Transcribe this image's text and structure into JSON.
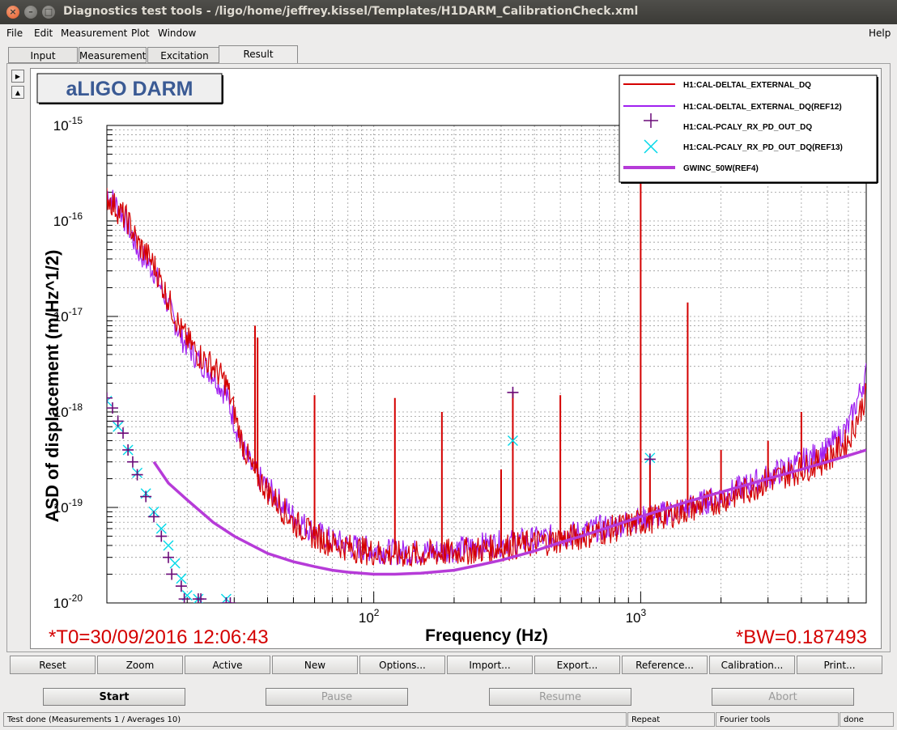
{
  "window": {
    "title": "Diagnostics test tools - /ligo/home/jeffrey.kissel/Templates/H1DARM_CalibrationCheck.xml"
  },
  "menu": {
    "items": [
      "File",
      "Edit",
      "Measurement",
      "Plot",
      "Window"
    ],
    "help": "Help"
  },
  "tabs": [
    "Input",
    "Measurement",
    "Excitation",
    "Result"
  ],
  "active_tab": "Result",
  "plot": {
    "title_box": "aLIGO DARM",
    "t0": "*T0=30/09/2016 12:06:43",
    "bw": "*BW=0.187493",
    "colors": {
      "ref12": "#a020f0",
      "gwinc": "#b63bd8",
      "meas": "#d40000",
      "pcaly": "#6a0a78",
      "pcaly_ref": "#00d8e8"
    }
  },
  "chart_data": {
    "type": "line",
    "xlabel": "Frequency (Hz)",
    "ylabel": "ASD of displacement (m/Hz^1/2)",
    "xscale": "log",
    "yscale": "log",
    "xlim": [
      10,
      7000
    ],
    "ylim": [
      1e-20,
      1e-15
    ],
    "grid": true,
    "legend_position": "top-right",
    "x_tick_labels": [
      "10^2",
      "10^3"
    ],
    "y_tick_labels": [
      "10^-15",
      "10^-16",
      "10^-17",
      "10^-18",
      "10^-19",
      "10^-20"
    ],
    "series": [
      {
        "name": "H1:CAL-DELTAL_EXTERNAL_DQ",
        "style": "line",
        "color": "#d40000",
        "x": [
          10,
          11,
          12,
          13,
          15,
          17,
          19,
          22,
          25,
          28,
          30,
          32,
          35,
          40,
          45,
          50,
          60,
          70,
          80,
          100,
          120,
          150,
          200,
          250,
          300,
          400,
          500,
          600,
          800,
          1000,
          1200,
          1500,
          2000,
          2500,
          3000,
          4000,
          5000,
          6000,
          7000
        ],
        "y": [
          1.8e-16,
          1.3e-16,
          1e-16,
          6e-17,
          3.5e-17,
          1.5e-17,
          7e-18,
          4e-18,
          3e-18,
          2e-18,
          1e-18,
          5e-19,
          2.5e-19,
          1.5e-19,
          1e-19,
          7e-20,
          5e-20,
          4.2e-20,
          3.8e-20,
          3.4e-20,
          3.2e-20,
          3.2e-20,
          3.4e-20,
          3.6e-20,
          3.8e-20,
          4.2e-20,
          4.6e-20,
          5e-20,
          6e-20,
          7e-20,
          8e-20,
          9.5e-20,
          1.2e-19,
          1.5e-19,
          1.9e-19,
          2.5e-19,
          3.2e-19,
          5e-19,
          1.5e-18
        ]
      },
      {
        "name": "H1:CAL-DELTAL_EXTERNAL_DQ(REF12)",
        "style": "line",
        "color": "#a020f0",
        "x": [
          10,
          11,
          12,
          13,
          15,
          17,
          19,
          22,
          25,
          28,
          30,
          32,
          35,
          40,
          45,
          50,
          60,
          70,
          80,
          100,
          120,
          150,
          200,
          250,
          300,
          400,
          500,
          600,
          800,
          1000,
          1200,
          1500,
          2000,
          2500,
          3000,
          4000,
          5000,
          6000,
          7000
        ],
        "y": [
          2e-16,
          1.4e-16,
          9e-17,
          5e-17,
          3e-17,
          1.3e-17,
          6e-18,
          3.5e-18,
          2.5e-18,
          1.5e-18,
          8e-19,
          4.5e-19,
          2.5e-19,
          1.6e-19,
          1.1e-19,
          8e-20,
          5.5e-20,
          4.5e-20,
          4e-20,
          3.6e-20,
          3.4e-20,
          3.4e-20,
          3.6e-20,
          4e-20,
          4.2e-20,
          4.6e-20,
          5e-20,
          5.5e-20,
          6.5e-20,
          7.5e-20,
          8.5e-20,
          1e-19,
          1.3e-19,
          1.7e-19,
          2.1e-19,
          3e-19,
          4e-19,
          7e-19,
          2.5e-18
        ]
      },
      {
        "name": "H1:CAL-PCALY_RX_PD_OUT_DQ",
        "style": "plus",
        "color": "#6a0a78",
        "x": [
          10,
          10.5,
          11,
          11.5,
          12,
          12.5,
          13,
          14,
          15,
          16,
          17,
          17.5,
          19,
          19.5,
          22,
          22.5,
          28,
          29,
          331.9,
          1083.7
        ],
        "y": [
          1.4e-18,
          1.1e-18,
          8e-19,
          6e-19,
          4e-19,
          3e-19,
          2.2e-19,
          1.3e-19,
          8e-20,
          5e-20,
          3e-20,
          2e-20,
          1.5e-20,
          1.1e-20,
          1.1e-20,
          1.1e-20,
          1e-20,
          1e-20,
          1.6e-18,
          3.2e-19
        ]
      },
      {
        "name": "H1:CAL-PCALY_RX_PD_OUT_DQ(REF13)",
        "style": "x",
        "color": "#00d8e8",
        "x": [
          10,
          11,
          12,
          13,
          14,
          15,
          16,
          17,
          18,
          19,
          20,
          22,
          28,
          331.9,
          1083.7
        ],
        "y": [
          1.3e-18,
          7e-19,
          4e-19,
          2.3e-19,
          1.4e-19,
          9e-20,
          6e-20,
          4e-20,
          2.6e-20,
          1.8e-20,
          1.2e-20,
          1.1e-20,
          1.1e-20,
          5e-19,
          3.3e-19
        ]
      },
      {
        "name": "GWINC_50W(REF4)",
        "style": "thick-line",
        "color": "#b63bd8",
        "x": [
          15,
          17,
          20,
          25,
          30,
          40,
          50,
          60,
          70,
          80,
          100,
          120,
          150,
          200,
          250,
          300,
          400,
          500,
          600,
          800,
          1000,
          1500,
          2000,
          3000,
          4000,
          5000,
          6000,
          7000
        ],
        "y": [
          3e-19,
          1.8e-19,
          1.2e-19,
          7e-20,
          5e-20,
          3.3e-20,
          2.7e-20,
          2.4e-20,
          2.2e-20,
          2.1e-20,
          2e-20,
          2e-20,
          2.05e-20,
          2.2e-20,
          2.5e-20,
          2.8e-20,
          3.5e-20,
          4.3e-20,
          5e-20,
          6.5e-20,
          8e-20,
          1.15e-19,
          1.45e-19,
          2e-19,
          2.5e-19,
          3e-19,
          3.5e-19,
          4e-19
        ]
      }
    ]
  },
  "buttons": [
    "Reset",
    "Zoom",
    "Active",
    "New",
    "Options...",
    "Import...",
    "Export...",
    "Reference...",
    "Calibration...",
    "Print..."
  ],
  "run": {
    "start": "Start",
    "pause": "Pause",
    "resume": "Resume",
    "abort": "Abort"
  },
  "status": {
    "main": "Test done (Measurements 1 / Averages 10)",
    "mode": "Repeat",
    "tool": "Fourier tools",
    "state": "done"
  }
}
